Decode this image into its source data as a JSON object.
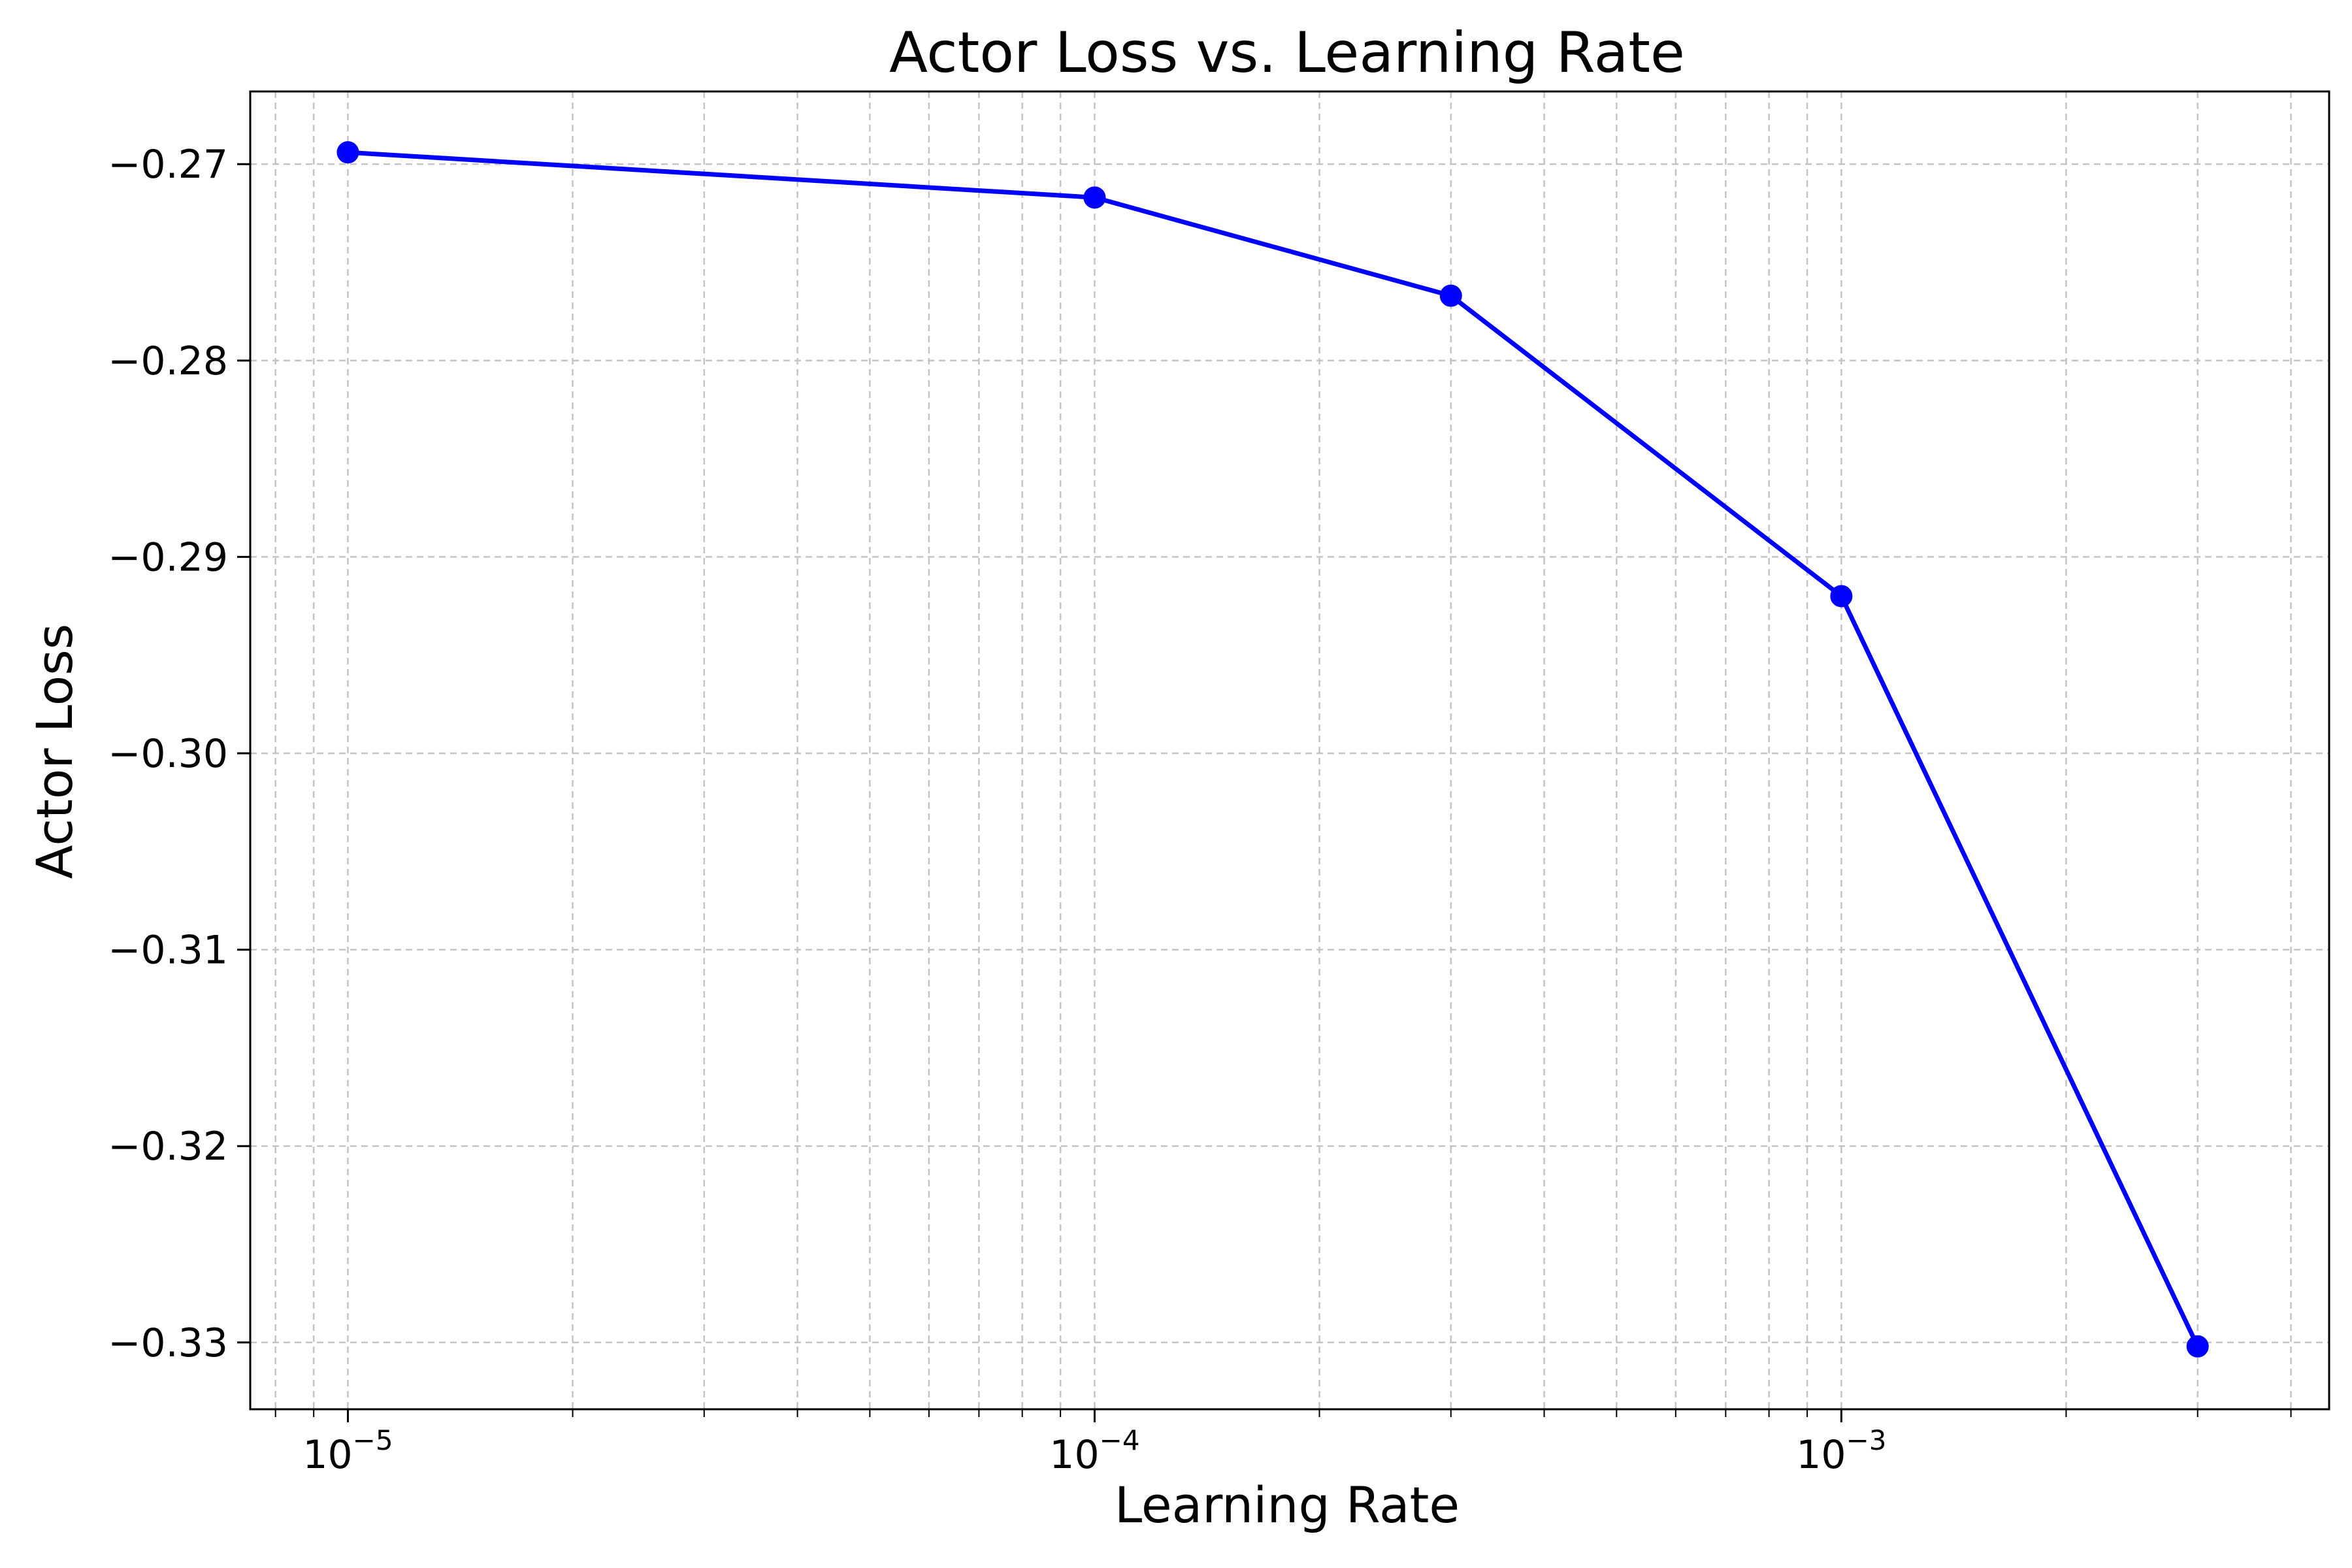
{
  "chart_data": {
    "type": "line",
    "title": "Actor Loss vs. Learning Rate",
    "xlabel": "Learning Rate",
    "ylabel": "Actor Loss",
    "xscale": "log",
    "grid": true,
    "grid_style": "dashed, major and minor",
    "legend": "none",
    "xlim": [
      7.4e-06,
      0.0045
    ],
    "ylim": [
      -0.3334,
      -0.2663
    ],
    "x_ticks": [
      {
        "value": 1e-05,
        "base": "10",
        "exp": "−5"
      },
      {
        "value": 0.0001,
        "base": "10",
        "exp": "−4"
      },
      {
        "value": 0.001,
        "base": "10",
        "exp": "−3"
      }
    ],
    "y_ticks": [
      {
        "value": -0.27,
        "label": "−0.27"
      },
      {
        "value": -0.28,
        "label": "−0.28"
      },
      {
        "value": -0.29,
        "label": "−0.29"
      },
      {
        "value": -0.3,
        "label": "−0.30"
      },
      {
        "value": -0.31,
        "label": "−0.31"
      },
      {
        "value": -0.32,
        "label": "−0.32"
      },
      {
        "value": -0.33,
        "label": "−0.33"
      }
    ],
    "series": [
      {
        "color": "#0000ff",
        "marker": "circle",
        "points": [
          {
            "x": 1e-05,
            "y": -0.2694
          },
          {
            "x": 0.0001,
            "y": -0.2717
          },
          {
            "x": 0.0003,
            "y": -0.2767
          },
          {
            "x": 0.001,
            "y": -0.292
          },
          {
            "x": 0.003,
            "y": -0.3302
          }
        ]
      }
    ]
  }
}
